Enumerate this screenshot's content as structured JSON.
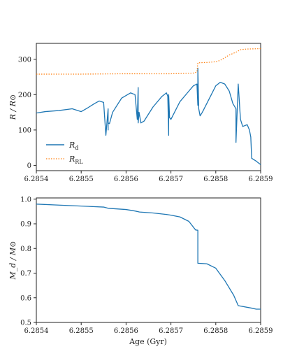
{
  "chart_data": [
    {
      "type": "line",
      "title": "",
      "xlabel": "",
      "ylabel": "R / R⊙",
      "xlim": [
        6.2854,
        6.2859
      ],
      "ylim": [
        -15,
        345
      ],
      "xticks": [
        6.2854,
        6.2855,
        6.2856,
        6.2857,
        6.2858,
        6.2859
      ],
      "xtick_labels": [
        "6.2854",
        "6.2855",
        "6.2856",
        "6.2857",
        "6.2858",
        "6.2859"
      ],
      "yticks": [
        0,
        100,
        200,
        300
      ],
      "ytick_labels": [
        "0",
        "100",
        "200",
        "300"
      ],
      "legend_position": "lower-left",
      "series": [
        {
          "name": "R_d",
          "label_main": "R",
          "label_sub": "d",
          "style": "solid",
          "color": "#1f77b4",
          "x": [
            6.2854,
            6.28542,
            6.28545,
            6.28548,
            6.2855,
            6.285515,
            6.28553,
            6.28554,
            6.28555,
            6.285555,
            6.28556,
            6.28556,
            6.28556,
            6.285563,
            6.28557,
            6.28559,
            6.28561,
            6.28562,
            6.285625,
            6.285627,
            6.285627,
            6.285629,
            6.285633,
            6.28564,
            6.28566,
            6.28568,
            6.28569,
            6.285693,
            6.285695,
            6.285695,
            6.285697,
            6.2857,
            6.28572,
            6.28574,
            6.28575,
            6.285758,
            6.28576,
            6.28576,
            6.285762,
            6.285765,
            6.28577,
            6.28579,
            6.2858,
            6.28581,
            6.28582,
            6.28583,
            6.285838,
            6.285845,
            6.285845,
            6.28585,
            6.285855,
            6.28586,
            6.28587,
            6.285875,
            6.285878,
            6.28588,
            6.28589,
            6.2859
          ],
          "y": [
            148,
            152,
            155,
            160,
            152,
            163,
            175,
            182,
            178,
            85,
            160,
            100,
            120,
            118,
            150,
            190,
            205,
            200,
            130,
            220,
            120,
            150,
            120,
            125,
            165,
            195,
            205,
            195,
            85,
            200,
            135,
            130,
            180,
            210,
            225,
            230,
            170,
            275,
            160,
            140,
            150,
            200,
            225,
            235,
            230,
            210,
            175,
            160,
            65,
            230,
            130,
            110,
            115,
            100,
            80,
            20,
            12,
            2
          ]
        },
        {
          "name": "R_RL",
          "label_main": "R",
          "label_sub": "RL",
          "style": "dotted",
          "color": "#ff7f0e",
          "x": [
            6.2854,
            6.2855,
            6.2856,
            6.2857,
            6.28575,
            6.285758,
            6.28576,
            6.28578,
            6.2858,
            6.28581,
            6.28583,
            6.285845,
            6.285855,
            6.28586,
            6.28587,
            6.2859
          ],
          "y": [
            258,
            258,
            259,
            259,
            261,
            264,
            290,
            291,
            293,
            297,
            312,
            320,
            327,
            328,
            329,
            330
          ]
        }
      ]
    },
    {
      "type": "line",
      "title": "",
      "xlabel": "Age (Gyr)",
      "ylabel": "M_d / M⊙",
      "xlim": [
        6.2854,
        6.2859
      ],
      "ylim": [
        0.5,
        1.005
      ],
      "xticks": [
        6.2854,
        6.2855,
        6.2856,
        6.2857,
        6.2858,
        6.2859
      ],
      "xtick_labels": [
        "6.2854",
        "6.2855",
        "6.2856",
        "6.2857",
        "6.2858",
        "6.2859"
      ],
      "yticks": [
        0.5,
        0.6,
        0.7,
        0.8,
        0.9,
        1.0
      ],
      "ytick_labels": [
        "0.5",
        "0.6",
        "0.7",
        "0.8",
        "0.9",
        "1.0"
      ],
      "series": [
        {
          "style": "solid",
          "color": "#1f77b4",
          "x": [
            6.2854,
            6.28545,
            6.2855,
            6.28555,
            6.28556,
            6.2856,
            6.28562,
            6.28563,
            6.28566,
            6.28569,
            6.2857,
            6.28572,
            6.28574,
            6.285755,
            6.28576,
            6.28576,
            6.28578,
            6.2858,
            6.28582,
            6.28584,
            6.28585,
            6.28588,
            6.28589,
            6.2859
          ],
          "y": [
            0.98,
            0.976,
            0.972,
            0.968,
            0.963,
            0.958,
            0.952,
            0.948,
            0.944,
            0.938,
            0.935,
            0.928,
            0.91,
            0.875,
            0.874,
            0.74,
            0.738,
            0.72,
            0.67,
            0.61,
            0.568,
            0.558,
            0.554,
            0.554
          ]
        }
      ]
    }
  ]
}
